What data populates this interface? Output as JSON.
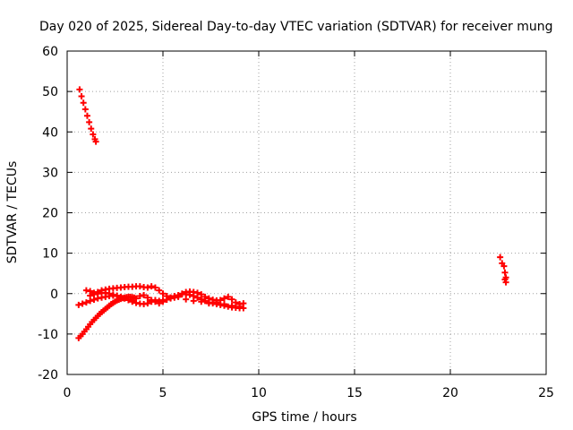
{
  "chart_data": {
    "type": "scatter",
    "title": "Day 020 of 2025, Sidereal Day-to-day VTEC variation (SDTVAR) for receiver mung",
    "xlabel": "GPS time / hours",
    "ylabel": "SDTVAR / TECUs",
    "xlim": [
      0,
      25
    ],
    "ylim": [
      -20,
      60
    ],
    "xticks": [
      0,
      5,
      10,
      15,
      20,
      25
    ],
    "yticks": [
      -20,
      -10,
      0,
      10,
      20,
      30,
      40,
      50,
      60
    ],
    "grid": true,
    "marker": "plus",
    "color": "#ff0000",
    "series": [
      {
        "x": [
          0.65,
          0.75,
          0.85,
          0.95,
          1.05,
          1.15,
          1.25,
          1.35,
          1.45,
          1.5
        ],
        "y": [
          50.5,
          48.8,
          47.2,
          45.6,
          44.0,
          42.4,
          40.8,
          39.4,
          38.2,
          37.6
        ]
      },
      {
        "x": [
          0.6,
          0.7,
          0.8,
          0.9,
          1.0,
          1.1,
          1.2,
          1.3,
          1.4,
          1.5,
          1.6,
          1.7,
          1.8,
          1.9,
          2.0,
          2.1,
          2.2,
          2.3,
          2.4,
          2.5,
          2.6,
          2.7,
          2.8,
          2.9,
          3.0,
          3.1,
          3.2,
          3.3,
          3.4,
          3.5
        ],
        "y": [
          -11.0,
          -10.5,
          -10.0,
          -9.4,
          -8.8,
          -8.2,
          -7.6,
          -7.0,
          -6.5,
          -6.0,
          -5.5,
          -5.0,
          -4.6,
          -4.2,
          -3.8,
          -3.4,
          -3.0,
          -2.6,
          -2.3,
          -2.0,
          -1.7,
          -1.5,
          -1.3,
          -1.1,
          -1.0,
          -0.9,
          -0.8,
          -0.8,
          -0.9,
          -1.0
        ]
      },
      {
        "x": [
          0.6,
          0.8,
          1.0,
          1.2,
          1.4,
          1.6,
          1.8,
          2.0,
          2.2,
          2.4,
          2.6,
          2.8,
          3.0,
          3.2,
          3.4,
          3.6,
          3.8,
          4.0,
          4.2,
          4.4,
          4.6,
          4.8,
          5.0,
          5.2,
          5.4,
          5.6,
          5.8,
          6.0,
          6.2,
          6.4,
          6.6,
          6.8,
          7.0,
          7.2,
          7.4,
          7.6,
          7.8,
          8.0,
          8.2,
          8.4,
          8.6,
          8.8,
          9.0,
          9.2
        ],
        "y": [
          -2.8,
          -2.5,
          -2.2,
          -1.8,
          -1.5,
          -1.2,
          -1.0,
          -0.8,
          -0.6,
          -0.5,
          -0.5,
          -0.8,
          -1.2,
          -1.6,
          -2.0,
          -2.3,
          -2.5,
          -2.6,
          -2.4,
          -2.0,
          -1.6,
          -1.8,
          -2.0,
          -1.5,
          -1.0,
          -0.6,
          -0.4,
          -0.2,
          -0.1,
          -0.3,
          -0.6,
          -1.0,
          -1.4,
          -1.8,
          -2.2,
          -2.4,
          -2.6,
          -2.8,
          -3.0,
          -3.2,
          -3.4,
          -3.5,
          -3.6,
          -3.6
        ]
      },
      {
        "x": [
          1.0,
          1.2,
          1.4,
          1.6,
          1.8,
          2.0,
          2.2,
          2.4,
          2.6,
          2.8,
          3.0,
          3.2,
          3.4,
          3.6,
          3.8,
          4.0,
          4.2,
          4.4,
          4.6,
          4.8,
          5.0,
          5.2,
          5.4,
          5.6,
          5.8,
          6.0,
          6.2,
          6.4,
          6.6,
          6.8,
          7.0,
          7.2,
          7.4,
          7.6,
          7.8,
          8.0,
          8.2,
          8.4,
          8.6,
          8.8,
          9.0,
          9.2
        ],
        "y": [
          0.8,
          0.6,
          0.2,
          0.4,
          0.8,
          1.0,
          1.2,
          1.3,
          1.4,
          1.5,
          1.6,
          1.7,
          1.7,
          1.8,
          1.8,
          1.6,
          1.5,
          1.8,
          1.5,
          0.8,
          0.0,
          -0.6,
          -1.0,
          -1.0,
          -0.6,
          0.0,
          0.4,
          0.5,
          0.4,
          0.2,
          -0.2,
          -0.8,
          -1.2,
          -1.5,
          -1.7,
          -1.6,
          -1.2,
          -0.8,
          -1.4,
          -2.2,
          -2.6,
          -2.4
        ]
      },
      {
        "x": [
          1.2,
          1.4,
          1.6,
          1.8,
          2.0,
          2.2,
          2.4,
          2.6,
          2.8,
          3.0,
          3.2,
          3.4,
          3.6,
          3.8,
          4.0,
          4.2,
          4.4,
          4.6,
          4.8,
          5.0,
          5.4,
          5.8,
          6.2,
          6.6,
          7.0,
          7.4,
          7.8,
          8.2,
          8.6,
          9.0
        ],
        "y": [
          -0.5,
          -0.2,
          0.0,
          0.1,
          0.2,
          0.0,
          -0.3,
          -0.6,
          -0.9,
          -1.2,
          -1.5,
          -1.8,
          -1.2,
          -0.6,
          -0.4,
          -1.0,
          -1.6,
          -2.0,
          -2.4,
          -1.6,
          -1.2,
          -0.8,
          -1.4,
          -1.8,
          -2.0,
          -2.4,
          -2.2,
          -2.6,
          -3.0,
          -3.2
        ]
      },
      {
        "x": [
          22.6,
          22.7,
          22.8,
          22.85,
          22.9,
          22.85,
          22.9
        ],
        "y": [
          9.0,
          7.5,
          6.8,
          5.2,
          4.0,
          3.5,
          2.8
        ]
      }
    ]
  }
}
